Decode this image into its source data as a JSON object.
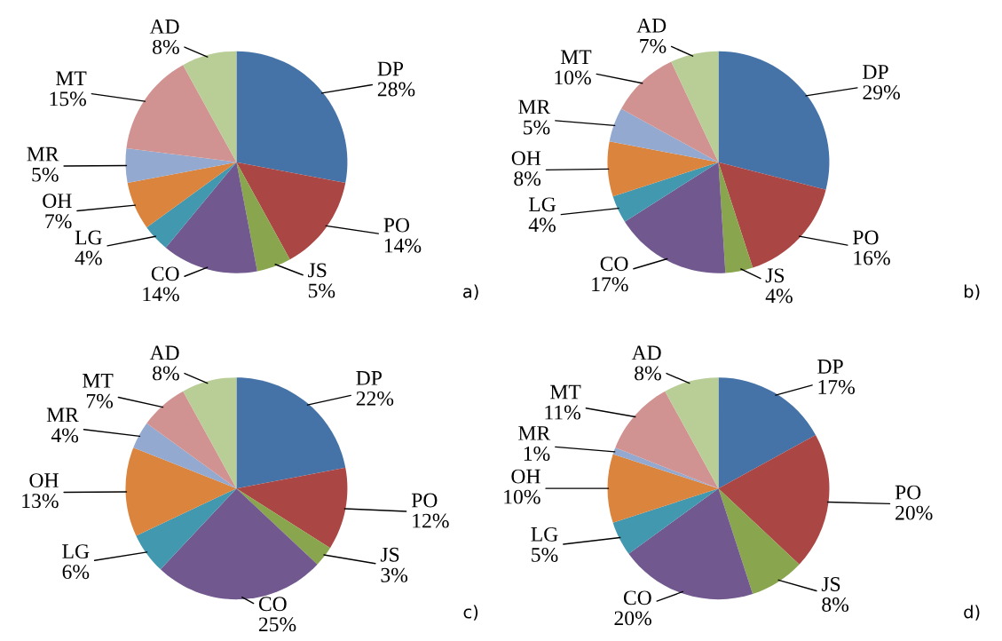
{
  "chart_data": [
    {
      "type": "pie",
      "categories": [
        "DP",
        "PO",
        "JS",
        "CO",
        "LG",
        "OH",
        "MR",
        "MT",
        "AD"
      ],
      "values": [
        28,
        14,
        5,
        14,
        4,
        7,
        5,
        15,
        8
      ],
      "value_labels": [
        "28%",
        "14%",
        "5%",
        "14%",
        "4%",
        "7%",
        "5%",
        "15%",
        "8%"
      ],
      "colors": [
        "#4572a7",
        "#aa4643",
        "#89a54e",
        "#71588f",
        "#4198af",
        "#db843d",
        "#93a9cf",
        "#d19392",
        "#b9cd96"
      ],
      "annotations": [
        "a)"
      ]
    },
    {
      "type": "pie",
      "categories": [
        "DP",
        "PO",
        "JS",
        "CO",
        "LG",
        "OH",
        "MR",
        "MT",
        "AD"
      ],
      "values": [
        29,
        16,
        4,
        17,
        4,
        8,
        5,
        10,
        7
      ],
      "value_labels": [
        "29%",
        "16%",
        "4%",
        "17%",
        "4%",
        "8%",
        "5%",
        "10%",
        "7%"
      ],
      "colors": [
        "#4572a7",
        "#aa4643",
        "#89a54e",
        "#71588f",
        "#4198af",
        "#db843d",
        "#93a9cf",
        "#d19392",
        "#b9cd96"
      ],
      "annotations": [
        "b)"
      ]
    },
    {
      "type": "pie",
      "categories": [
        "DP",
        "PO",
        "JS",
        "CO",
        "LG",
        "OH",
        "MR",
        "MT",
        "AD"
      ],
      "values": [
        22,
        12,
        3,
        25,
        6,
        13,
        4,
        7,
        8
      ],
      "value_labels": [
        "22%",
        "12%",
        "3%",
        "25%",
        "6%",
        "13%",
        "4%",
        "7%",
        "8%"
      ],
      "colors": [
        "#4572a7",
        "#aa4643",
        "#89a54e",
        "#71588f",
        "#4198af",
        "#db843d",
        "#93a9cf",
        "#d19392",
        "#b9cd96"
      ],
      "annotations": [
        "c)"
      ]
    },
    {
      "type": "pie",
      "categories": [
        "DP",
        "PO",
        "JS",
        "CO",
        "LG",
        "OH",
        "MR",
        "MT",
        "AD"
      ],
      "values": [
        17,
        20,
        8,
        20,
        5,
        10,
        1,
        11,
        8
      ],
      "value_labels": [
        "17%",
        "20%",
        "8%",
        "20%",
        "5%",
        "10%",
        "1%",
        "11%",
        "8%"
      ],
      "colors": [
        "#4572a7",
        "#aa4643",
        "#89a54e",
        "#71588f",
        "#4198af",
        "#db843d",
        "#93a9cf",
        "#d19392",
        "#b9cd96"
      ],
      "annotations": [
        "d)"
      ]
    }
  ]
}
